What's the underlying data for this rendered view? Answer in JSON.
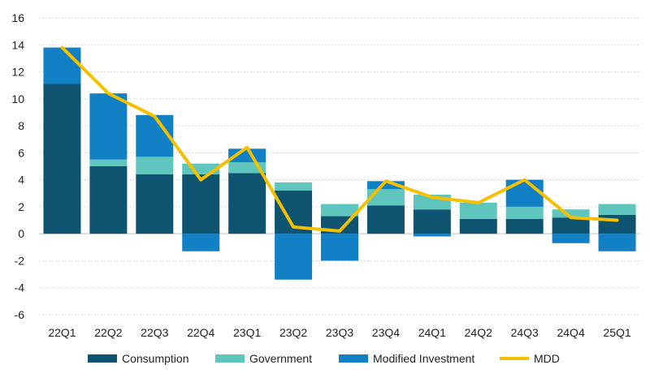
{
  "chart_data": {
    "type": "bar",
    "stacked": true,
    "title": "",
    "xlabel": "",
    "ylabel": "",
    "ylim": [
      -6,
      16
    ],
    "yticks": [
      -6,
      -4,
      -2,
      0,
      2,
      4,
      6,
      8,
      10,
      12,
      14,
      16
    ],
    "categories": [
      "22Q1",
      "22Q2",
      "22Q3",
      "22Q4",
      "23Q1",
      "23Q2",
      "23Q3",
      "23Q4",
      "24Q1",
      "24Q2",
      "24Q3",
      "24Q4",
      "25Q1"
    ],
    "series": [
      {
        "name": "Consumption",
        "kind": "bar",
        "color": "#0e5470",
        "values": [
          11.1,
          5.0,
          4.4,
          4.4,
          4.5,
          3.2,
          1.3,
          2.1,
          1.8,
          1.1,
          1.1,
          1.2,
          1.4
        ]
      },
      {
        "name": "Government",
        "kind": "bar",
        "color": "#5fc6be",
        "values": [
          0.0,
          0.5,
          1.3,
          0.8,
          0.8,
          0.6,
          0.9,
          1.2,
          1.1,
          1.2,
          0.9,
          0.6,
          0.8
        ]
      },
      {
        "name": "Modified Investment",
        "kind": "bar",
        "color": "#1180c4",
        "values": [
          2.7,
          4.9,
          3.1,
          -1.3,
          1.0,
          -3.4,
          -2.0,
          0.6,
          -0.2,
          0.0,
          2.0,
          -0.7,
          -1.3
        ]
      },
      {
        "name": "MDD",
        "kind": "line",
        "color": "#f5c000",
        "values": [
          13.8,
          10.4,
          8.7,
          4.0,
          6.4,
          0.5,
          0.2,
          3.9,
          2.7,
          2.3,
          4.0,
          1.2,
          1.0
        ]
      }
    ],
    "legend_position": "bottom",
    "grid": true
  }
}
